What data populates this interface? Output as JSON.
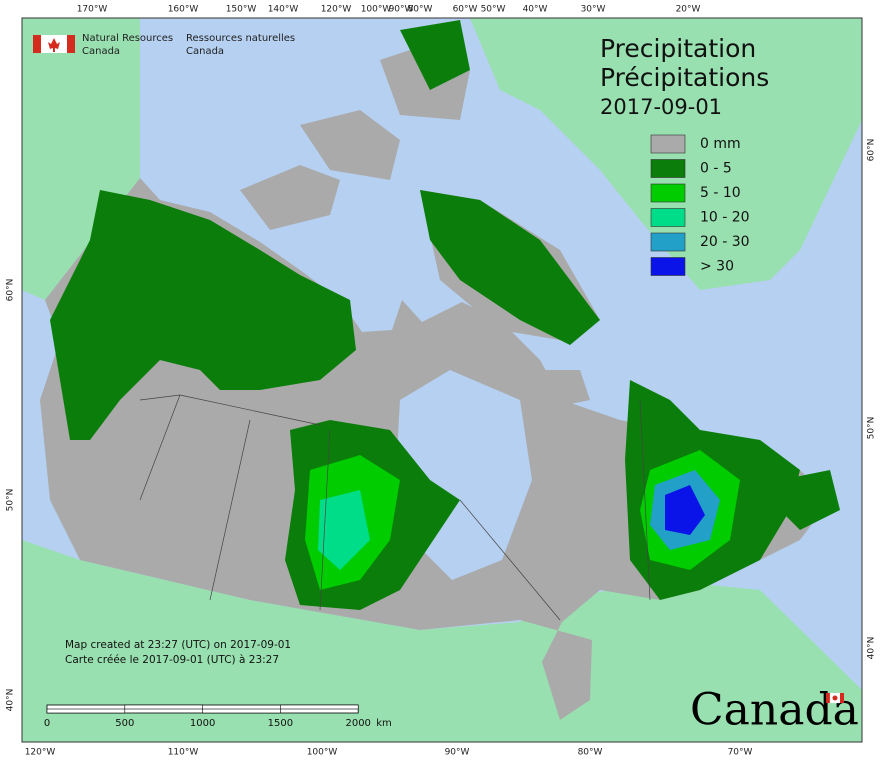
{
  "header": {
    "agency_en": [
      "Natural Resources",
      "Canada"
    ],
    "agency_fr": [
      "Ressources naturelles",
      "Canada"
    ]
  },
  "title": {
    "en": "Precipitation",
    "fr": "Précipitations",
    "date": "2017-09-01"
  },
  "legend": [
    {
      "label": "0 mm",
      "color": "#aaaaaa"
    },
    {
      "label": "0 - 5",
      "color": "#0a7d0a"
    },
    {
      "label": "5 - 10",
      "color": "#00cc00"
    },
    {
      "label": "10 - 20",
      "color": "#00dd88"
    },
    {
      "label": "20 - 30",
      "color": "#22a0c8"
    },
    {
      "label": "> 30",
      "color": "#0a14e8"
    }
  ],
  "graticule": {
    "top": [
      "170°W",
      "160°W",
      "150°W",
      "140°W",
      "120°W",
      "100°W",
      "90°W",
      "80°W",
      "60°W",
      "50°W",
      "40°W",
      "30°W",
      "20°W"
    ],
    "bottom": [
      "120°W",
      "110°W",
      "100°W",
      "90°W",
      "80°W",
      "70°W"
    ],
    "left": [
      "60°N",
      "50°N",
      "40°N"
    ],
    "right": [
      "60°N",
      "50°N",
      "40°N"
    ]
  },
  "note": [
    "Map created at 23:27 (UTC) on 2017-09-01",
    "Carte créée le 2017-09-01 (UTC) à 23:27"
  ],
  "scale": {
    "ticks": [
      0,
      500,
      1000,
      1500,
      2000
    ],
    "unit": "km"
  },
  "wordmark": "Canada"
}
